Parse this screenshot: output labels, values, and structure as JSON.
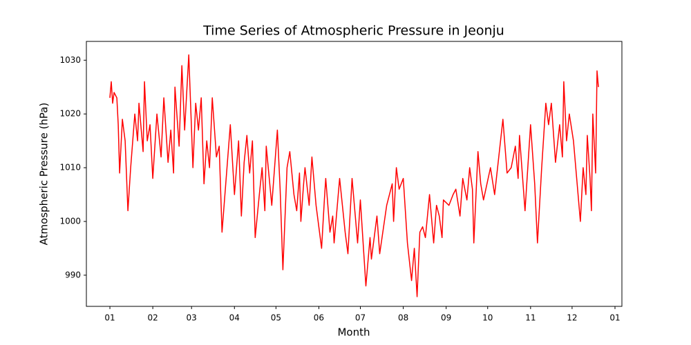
{
  "chart_data": {
    "type": "line",
    "title": "Time Series of Atmospheric Pressure in Jeonju",
    "x_label": "Month",
    "y_label": "Atmospheric Pressure (hPa)",
    "xlim": [
      -17,
      370
    ],
    "xticks": [
      {
        "value": 0,
        "label": "01"
      },
      {
        "value": 31,
        "label": "02"
      },
      {
        "value": 59,
        "label": "03"
      },
      {
        "value": 90,
        "label": "04"
      },
      {
        "value": 120,
        "label": "05"
      },
      {
        "value": 151,
        "label": "06"
      },
      {
        "value": 181,
        "label": "07"
      },
      {
        "value": 212,
        "label": "08"
      },
      {
        "value": 243,
        "label": "09"
      },
      {
        "value": 273,
        "label": "10"
      },
      {
        "value": 304,
        "label": "11"
      },
      {
        "value": 334,
        "label": "12"
      },
      {
        "value": 365,
        "label": "01"
      }
    ],
    "ylim": [
      984.2,
      1033.5
    ],
    "yticks": [
      990,
      1000,
      1010,
      1020,
      1030
    ],
    "series": [
      {
        "color": "#ff0000",
        "x": [
          0,
          1,
          2,
          3,
          5,
          6,
          7,
          9,
          11,
          13,
          15,
          18,
          20,
          21,
          24,
          25,
          27,
          29,
          31,
          34,
          37,
          39,
          42,
          44,
          46,
          47,
          50,
          52,
          54,
          57,
          60,
          62,
          64,
          66,
          68,
          70,
          72,
          74,
          77,
          79,
          81,
          84,
          87,
          90,
          93,
          95,
          97,
          99,
          101,
          103,
          105,
          108,
          110,
          112,
          113,
          117,
          121,
          123,
          125,
          128,
          130,
          133,
          135,
          137,
          138,
          140,
          141,
          144,
          146,
          149,
          153,
          155,
          156,
          159,
          161,
          162,
          164,
          166,
          170,
          172,
          175,
          179,
          181,
          185,
          188,
          189,
          193,
          195,
          200,
          204,
          205,
          207,
          209,
          212,
          215,
          218,
          220,
          222,
          224,
          226,
          228,
          231,
          234,
          236,
          238,
          240,
          241,
          245,
          248,
          250,
          253,
          255,
          258,
          260,
          262,
          263,
          266,
          268,
          270,
          275,
          278,
          284,
          287,
          290,
          293,
          295,
          296,
          300,
          303,
          304,
          307,
          309,
          312,
          315,
          317,
          319,
          322,
          325,
          327,
          328,
          330,
          332,
          335,
          340,
          342,
          344,
          345,
          347,
          348,
          349,
          351,
          352,
          353
        ],
        "values": [
          1023,
          1026,
          1022,
          1024,
          1023,
          1018,
          1009,
          1019,
          1015,
          1002,
          1010,
          1020,
          1015,
          1022,
          1013,
          1026,
          1015,
          1018,
          1008,
          1020,
          1012,
          1023,
          1011,
          1017,
          1009,
          1025,
          1014,
          1029,
          1017,
          1031,
          1010,
          1022,
          1017,
          1023,
          1007,
          1015,
          1010,
          1023,
          1012,
          1014,
          998,
          1008,
          1018,
          1005,
          1015,
          1001,
          1011,
          1016,
          1009,
          1015,
          997,
          1005,
          1010,
          1002,
          1014,
          1003,
          1017,
          1006,
          991,
          1010,
          1013,
          1005,
          1002,
          1009,
          1000,
          1007,
          1010,
          1003,
          1012,
          1003,
          995,
          1004,
          1008,
          998,
          1001,
          996,
          1002,
          1008,
          998,
          994,
          1008,
          996,
          1004,
          988,
          997,
          993,
          1001,
          994,
          1003,
          1007,
          1000,
          1010,
          1006,
          1008,
          996,
          989,
          995,
          986,
          998,
          999,
          997,
          1005,
          996,
          1003,
          1001,
          997,
          1004,
          1003,
          1005,
          1006,
          1001,
          1008,
          1004,
          1010,
          1006,
          996,
          1013,
          1007,
          1004,
          1010,
          1005,
          1019,
          1009,
          1010,
          1014,
          1008,
          1016,
          1002,
          1014,
          1018,
          1007,
          996,
          1010,
          1022,
          1018,
          1022,
          1011,
          1018,
          1012,
          1026,
          1015,
          1020,
          1015,
          1000,
          1010,
          1005,
          1016,
          1008,
          1002,
          1020,
          1009,
          1028,
          1025
        ]
      }
    ]
  }
}
